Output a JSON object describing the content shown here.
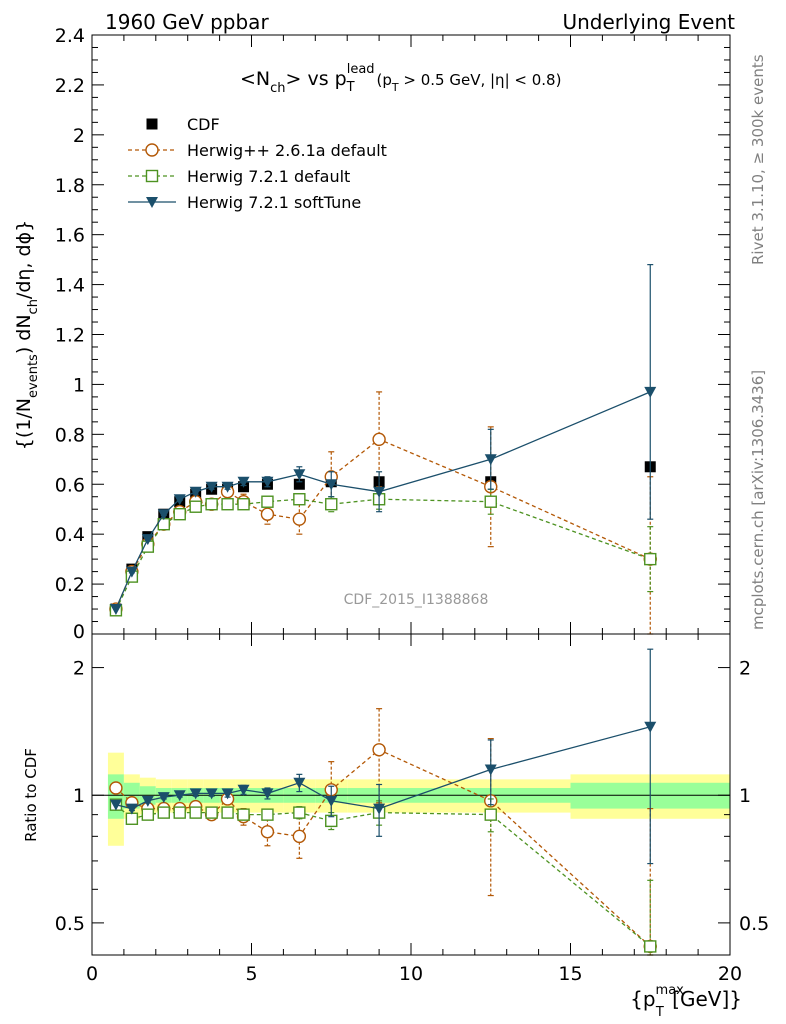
{
  "header": {
    "left": "1960 GeV ppbar",
    "right": "Underlying Event"
  },
  "side_text": {
    "rivet": "Rivet 3.1.10, ≥ 300k events",
    "mcplots": "mcplots.cern.ch [arXiv:1306.3436]"
  },
  "watermark": "CDF_2015_I1388868",
  "chart_data": [
    {
      "type": "scatter",
      "panel": "main",
      "title_parts": {
        "pre": "<N",
        "sub1": "ch",
        "mid": "> vs p",
        "sup2": "lead",
        "sub2": "T",
        "tail": "(p",
        "sub3": "T",
        "cut": " > 0.5 GeV, |η| < 0.8)"
      },
      "ylabel_parts": {
        "a": "{(1/N",
        "sub_a": "events",
        "b": ") dN",
        "sub_b": "ch",
        "c": "/dη, dϕ}"
      },
      "ylim": [
        0,
        2.4
      ],
      "yticks": [
        0.2,
        0.4,
        0.6,
        0.8,
        1,
        1.2,
        1.4,
        1.6,
        1.8,
        2,
        2.2,
        2.4
      ],
      "ytick_labels": [
        "0.2",
        "0.4",
        "0.6",
        "0.8",
        "1",
        "1.2",
        "1.4",
        "1.6",
        "1.8",
        "2",
        "2.2",
        "2.4"
      ],
      "ytick_zero_label": "0",
      "xlim": [
        0,
        20
      ],
      "legend": {
        "position": "top-left",
        "entries": [
          "CDF",
          "Herwig++ 2.6.1a default",
          "Herwig 7.2.1 default",
          "Herwig 7.2.1 softTune"
        ]
      },
      "series": [
        {
          "name": "CDF",
          "color": "#000000",
          "marker": "square-filled",
          "x": [
            0.75,
            1.25,
            1.75,
            2.25,
            2.75,
            3.25,
            3.75,
            4.25,
            4.75,
            5.5,
            6.5,
            7.5,
            9,
            12.5,
            17.5
          ],
          "y": [
            0.1,
            0.26,
            0.39,
            0.48,
            0.53,
            0.56,
            0.58,
            0.58,
            0.59,
            0.6,
            0.6,
            0.61,
            0.61,
            0.61,
            0.67
          ]
        },
        {
          "name": "Herwig++ 2.6.1a default",
          "color": "#b35806",
          "marker": "circle-open",
          "dashed": true,
          "x": [
            0.75,
            1.25,
            1.75,
            2.25,
            2.75,
            3.25,
            3.75,
            4.25,
            4.75,
            5.5,
            6.5,
            7.5,
            9,
            12.5,
            17.5
          ],
          "y": [
            0.1,
            0.25,
            0.36,
            0.44,
            0.49,
            0.53,
            0.52,
            0.57,
            0.53,
            0.48,
            0.46,
            0.63,
            0.78,
            0.59,
            0.3
          ],
          "err": [
            0,
            0.01,
            0.01,
            0.01,
            0.01,
            0.01,
            0.01,
            0.02,
            0.03,
            0.04,
            0.06,
            0.1,
            0.19,
            0.24,
            0.33
          ]
        },
        {
          "name": "Herwig 7.2.1 default",
          "color": "#4d9221",
          "marker": "square-open",
          "dashed": true,
          "x": [
            0.75,
            1.25,
            1.75,
            2.25,
            2.75,
            3.25,
            3.75,
            4.25,
            4.75,
            5.5,
            6.5,
            7.5,
            9,
            12.5,
            17.5
          ],
          "y": [
            0.095,
            0.23,
            0.35,
            0.44,
            0.48,
            0.51,
            0.52,
            0.52,
            0.52,
            0.53,
            0.54,
            0.52,
            0.54,
            0.53,
            0.3
          ],
          "err": [
            0,
            0.005,
            0.005,
            0.005,
            0.005,
            0.005,
            0.01,
            0.01,
            0.01,
            0.015,
            0.02,
            0.03,
            0.04,
            0.05,
            0.13
          ]
        },
        {
          "name": "Herwig 7.2.1 softTune",
          "color": "#1b4f6b",
          "marker": "triangle-down-filled",
          "dashed": false,
          "x": [
            0.75,
            1.25,
            1.75,
            2.25,
            2.75,
            3.25,
            3.75,
            4.25,
            4.75,
            5.5,
            6.5,
            7.5,
            9,
            12.5,
            17.5
          ],
          "y": [
            0.1,
            0.25,
            0.38,
            0.48,
            0.54,
            0.57,
            0.59,
            0.59,
            0.61,
            0.61,
            0.64,
            0.6,
            0.57,
            0.7,
            0.97
          ],
          "err": [
            0,
            0.005,
            0.005,
            0.005,
            0.005,
            0.01,
            0.01,
            0.01,
            0.015,
            0.02,
            0.03,
            0.05,
            0.08,
            0.12,
            0.51
          ]
        }
      ]
    },
    {
      "type": "scatter",
      "panel": "ratio",
      "ylabel": "Ratio to CDF",
      "y_scale": "log",
      "ylim": [
        0.42,
        2.4
      ],
      "yticks": [
        0.5,
        1,
        2
      ],
      "ytick_labels": [
        "0.5",
        "1",
        "2"
      ],
      "xlim": [
        0,
        20
      ],
      "xticks": [
        0,
        5,
        10,
        15,
        20
      ],
      "xtick_labels": [
        "0",
        "5",
        "10",
        "15",
        "20"
      ],
      "xlabel_parts": {
        "a": "{p",
        "sup": "max",
        "sub": "T",
        "b": " [GeV]}"
      },
      "bands": {
        "x_edges": [
          0.5,
          1,
          1.5,
          2,
          2.5,
          3,
          3.5,
          4,
          4.5,
          5,
          6,
          7,
          8,
          10,
          15,
          20
        ],
        "inner_lo": [
          0.88,
          0.93,
          0.95,
          0.96,
          0.96,
          0.96,
          0.96,
          0.96,
          0.96,
          0.96,
          0.96,
          0.96,
          0.96,
          0.96,
          0.93
        ],
        "inner_hi": [
          1.12,
          1.07,
          1.05,
          1.04,
          1.04,
          1.04,
          1.04,
          1.04,
          1.04,
          1.04,
          1.04,
          1.04,
          1.04,
          1.04,
          1.07
        ],
        "outer_lo": [
          0.76,
          0.88,
          0.9,
          0.91,
          0.91,
          0.91,
          0.91,
          0.91,
          0.91,
          0.91,
          0.91,
          0.91,
          0.91,
          0.91,
          0.88
        ],
        "outer_hi": [
          1.26,
          1.12,
          1.1,
          1.09,
          1.09,
          1.09,
          1.09,
          1.09,
          1.09,
          1.09,
          1.09,
          1.09,
          1.09,
          1.09,
          1.12
        ],
        "inner_color": "#99ff99",
        "outer_color": "#ffff99"
      },
      "series": [
        {
          "name": "Herwig++ 2.6.1a default",
          "color": "#b35806",
          "marker": "circle-open",
          "dashed": true,
          "x": [
            0.75,
            1.25,
            1.75,
            2.25,
            2.75,
            3.25,
            3.75,
            4.25,
            4.75,
            5.5,
            6.5,
            7.5,
            9,
            12.5,
            17.5
          ],
          "y": [
            1.04,
            0.96,
            0.93,
            0.93,
            0.93,
            0.94,
            0.9,
            0.98,
            0.89,
            0.82,
            0.8,
            1.03,
            1.28,
            0.97,
            0.44
          ],
          "err": [
            0,
            0.01,
            0.01,
            0.01,
            0.01,
            0.01,
            0.01,
            0.02,
            0.04,
            0.06,
            0.09,
            0.17,
            0.32,
            0.39,
            0.49
          ]
        },
        {
          "name": "Herwig 7.2.1 default",
          "color": "#4d9221",
          "marker": "square-open",
          "dashed": true,
          "x": [
            0.75,
            1.25,
            1.75,
            2.25,
            2.75,
            3.25,
            3.75,
            4.25,
            4.75,
            5.5,
            6.5,
            7.5,
            9,
            12.5,
            17.5
          ],
          "y": [
            0.95,
            0.88,
            0.9,
            0.91,
            0.91,
            0.91,
            0.91,
            0.91,
            0.9,
            0.9,
            0.91,
            0.87,
            0.91,
            0.9,
            0.44
          ],
          "err": [
            0,
            0.01,
            0.01,
            0.01,
            0.01,
            0.01,
            0.01,
            0.01,
            0.015,
            0.02,
            0.03,
            0.04,
            0.06,
            0.08,
            0.19
          ]
        },
        {
          "name": "Herwig 7.2.1 softTune",
          "color": "#1b4f6b",
          "marker": "triangle-down-filled",
          "dashed": false,
          "x": [
            0.75,
            1.25,
            1.75,
            2.25,
            2.75,
            3.25,
            3.75,
            4.25,
            4.75,
            5.5,
            6.5,
            7.5,
            9,
            12.5,
            17.5
          ],
          "y": [
            0.95,
            0.93,
            0.97,
            0.99,
            1.0,
            1.01,
            1.01,
            1.01,
            1.03,
            1.01,
            1.07,
            0.97,
            0.93,
            1.15,
            1.45
          ],
          "err": [
            0,
            0.01,
            0.01,
            0.01,
            0.01,
            0.015,
            0.015,
            0.02,
            0.025,
            0.03,
            0.05,
            0.08,
            0.13,
            0.2,
            0.76
          ]
        }
      ]
    }
  ]
}
